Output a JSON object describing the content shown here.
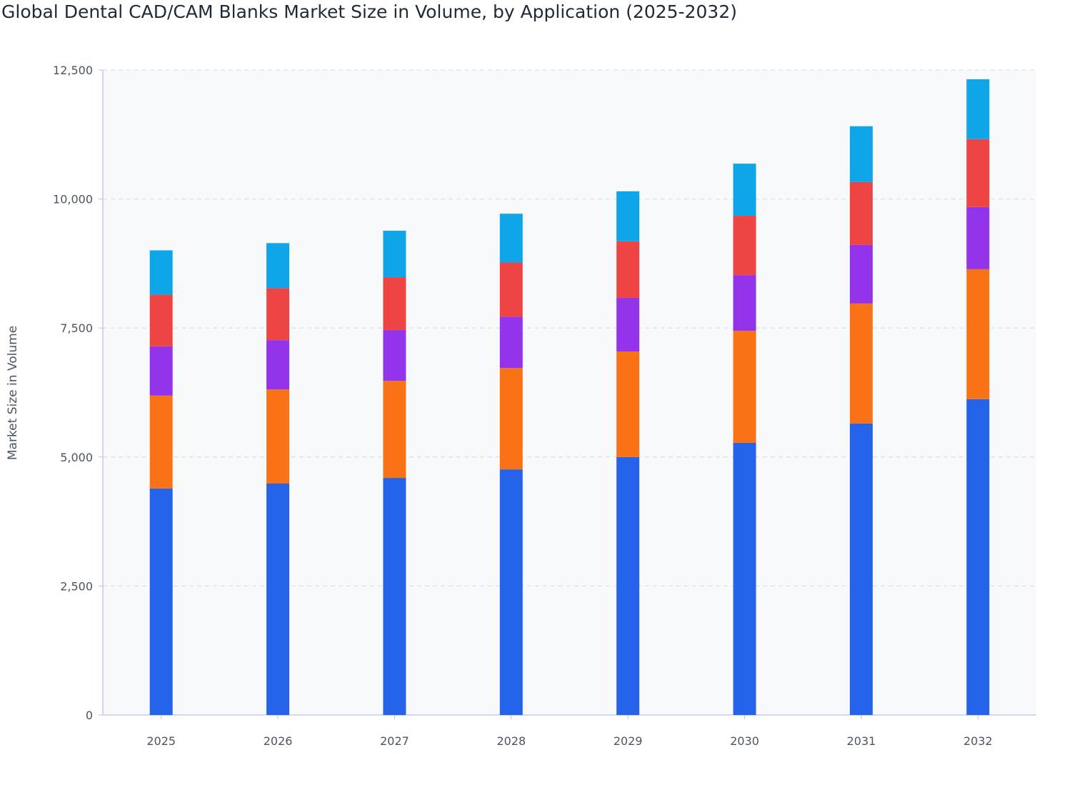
{
  "chart_data": {
    "type": "bar",
    "stacked": true,
    "title": "Global Dental CAD/CAM Blanks Market Size in Volume, by Application (2025-2032)",
    "xlabel": "",
    "ylabel": "Market Size in Volume",
    "ylim": [
      0,
      12500
    ],
    "yticks": [
      0,
      2500,
      5000,
      7500,
      10000,
      12500
    ],
    "ytick_labels": [
      "0",
      "2,500",
      "5,000",
      "7,500",
      "10,000",
      "12,500"
    ],
    "grid": true,
    "legend": "none",
    "categories": [
      "2025",
      "2026",
      "2027",
      "2028",
      "2029",
      "2030",
      "2031",
      "2032"
    ],
    "series": [
      {
        "color": "#2563eb",
        "values": [
          4390,
          4485,
          4595,
          4760,
          5000,
          5275,
          5650,
          6120
        ]
      },
      {
        "color": "#f97316",
        "values": [
          1800,
          1825,
          1880,
          1965,
          2045,
          2170,
          2325,
          2520
        ]
      },
      {
        "color": "#9333ea",
        "values": [
          955,
          955,
          985,
          995,
          1040,
          1080,
          1135,
          1205
        ]
      },
      {
        "color": "#ef4444",
        "values": [
          1000,
          1010,
          1025,
          1050,
          1095,
          1150,
          1220,
          1315
        ]
      },
      {
        "color": "#0ea5e9",
        "values": [
          860,
          870,
          900,
          945,
          970,
          1010,
          1080,
          1160
        ]
      }
    ]
  }
}
